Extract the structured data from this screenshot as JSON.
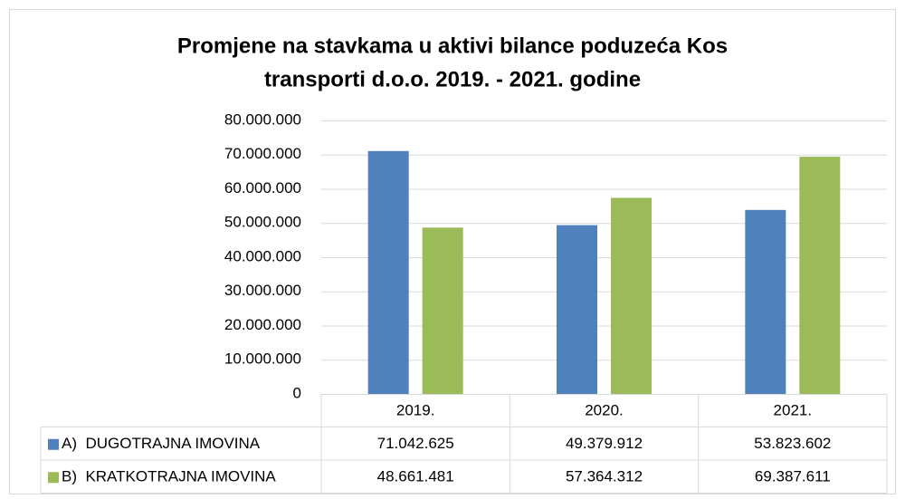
{
  "chart_data": {
    "type": "bar",
    "title": [
      "Promjene na stavkama u aktivi bilance poduzeća Kos",
      "transporti d.o.o. 2019. - 2021. godine"
    ],
    "categories": [
      "2019.",
      "2020.",
      "2021."
    ],
    "series": [
      {
        "name": "A)  DUGOTRAJNA IMOVINA",
        "color": "#4f81bd",
        "values": [
          71042625,
          49379912,
          53823602
        ],
        "value_labels": [
          "71.042.625",
          "49.379.912",
          "53.823.602"
        ]
      },
      {
        "name": "B)  KRATKOTRAJNA IMOVINA",
        "color": "#9bbb59",
        "values": [
          48661481,
          57364312,
          69387611
        ],
        "value_labels": [
          "48.661.481",
          "57.364.312",
          "69.387.611"
        ]
      }
    ],
    "ylim": [
      0,
      80000000
    ],
    "yticks": [
      0,
      {
        "value": 10000000,
        "label": "10.000.000"
      },
      {
        "value": 20000000,
        "label": "20.000.000"
      },
      {
        "value": 30000000,
        "label": "30.000.000"
      },
      {
        "value": 40000000,
        "label": "40.000.000"
      },
      {
        "value": 50000000,
        "label": "50.000.000"
      },
      {
        "value": 60000000,
        "label": "60.000.000"
      },
      {
        "value": 70000000,
        "label": "70.000.000"
      },
      {
        "value": 80000000,
        "label": "80.000.000"
      }
    ],
    "grid": true,
    "data_table": true
  }
}
